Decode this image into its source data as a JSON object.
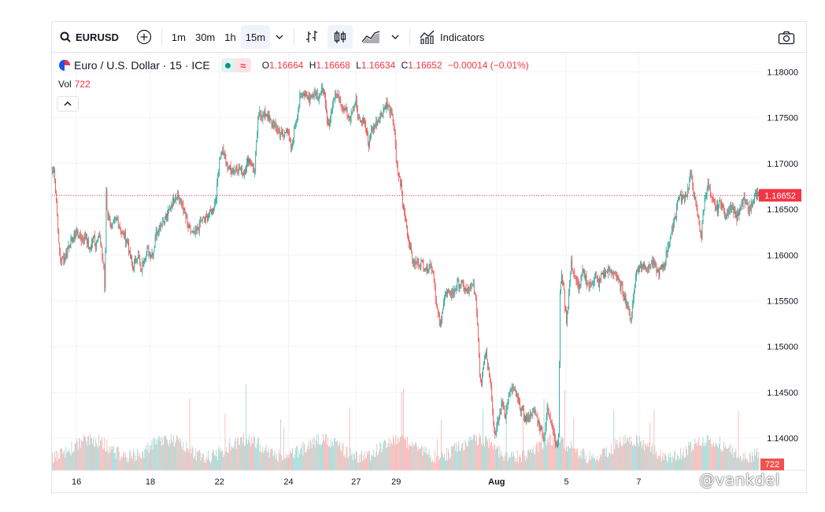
{
  "toolbar": {
    "symbol": "EURUSD",
    "intervals": [
      "1m",
      "30m",
      "1h",
      "15m"
    ],
    "active_interval": "15m",
    "indicators_label": "Indicators"
  },
  "legend": {
    "title": "Euro / U.S. Dollar · 15 · ICE",
    "open_label": "O",
    "open": "1.16664",
    "high_label": "H",
    "high": "1.16668",
    "low_label": "L",
    "low": "1.16634",
    "close_label": "C",
    "close": "1.16652",
    "change": "−0.00014 (−0.01%)",
    "vol_label": "Vol",
    "vol_value": "722"
  },
  "colors": {
    "up": "#26a69a",
    "down": "#ef5350",
    "price_line": "#f23645",
    "grid": "#f0f3fa"
  },
  "watermark": "@vankdel",
  "chart_data": {
    "type": "candlestick",
    "symbol": "EURUSD",
    "interval": "15",
    "last_price": 1.16652,
    "last_volume": 722,
    "ylim": [
      1.1365,
      1.182
    ],
    "y_ticks": [
      "1.18000",
      "1.17500",
      "1.17000",
      "1.16500",
      "1.16000",
      "1.15500",
      "1.15000",
      "1.14500",
      "1.14000"
    ],
    "x_ticks": [
      "16",
      "18",
      "22",
      "24",
      "27",
      "29",
      "Aug",
      "5",
      "7"
    ],
    "price_path": [
      [
        0,
        1.169
      ],
      [
        2,
        1.1692
      ],
      [
        3,
        1.1685
      ],
      [
        4,
        1.167
      ],
      [
        5,
        1.1662
      ],
      [
        8,
        1.161
      ],
      [
        10,
        1.1595
      ],
      [
        16,
        1.1598
      ],
      [
        20,
        1.161
      ],
      [
        26,
        1.1618
      ],
      [
        30,
        1.1625
      ],
      [
        36,
        1.1618
      ],
      [
        42,
        1.162
      ],
      [
        46,
        1.1605
      ],
      [
        50,
        1.1615
      ],
      [
        52,
        1.162
      ],
      [
        54,
        1.161
      ],
      [
        56,
        1.162
      ],
      [
        58,
        1.1625
      ],
      [
        60,
        1.1612
      ],
      [
        62,
        1.16
      ],
      [
        64,
        1.1585
      ],
      [
        65,
        1.1565
      ],
      [
        66,
        1.16
      ],
      [
        67,
        1.167
      ],
      [
        68,
        1.165
      ],
      [
        70,
        1.164
      ],
      [
        74,
        1.163
      ],
      [
        80,
        1.164
      ],
      [
        84,
        1.163
      ],
      [
        86,
        1.1625
      ],
      [
        90,
        1.162
      ],
      [
        94,
        1.1615
      ],
      [
        96,
        1.16
      ],
      [
        98,
        1.1595
      ],
      [
        100,
        1.1585
      ],
      [
        104,
        1.1595
      ],
      [
        106,
        1.16
      ],
      [
        108,
        1.1595
      ],
      [
        110,
        1.158
      ],
      [
        112,
        1.159
      ],
      [
        114,
        1.1598
      ],
      [
        118,
        1.1605
      ],
      [
        122,
        1.16
      ],
      [
        126,
        1.1605
      ],
      [
        128,
        1.162
      ],
      [
        132,
        1.163
      ],
      [
        136,
        1.1635
      ],
      [
        140,
        1.164
      ],
      [
        144,
        1.1645
      ],
      [
        148,
        1.1655
      ],
      [
        152,
        1.1662
      ],
      [
        156,
        1.1668
      ],
      [
        158,
        1.166
      ],
      [
        162,
        1.1655
      ],
      [
        166,
        1.164
      ],
      [
        170,
        1.1628
      ],
      [
        176,
        1.1622
      ],
      [
        182,
        1.163
      ],
      [
        186,
        1.164
      ],
      [
        190,
        1.1638
      ],
      [
        196,
        1.1645
      ],
      [
        200,
        1.165
      ],
      [
        204,
        1.1665
      ],
      [
        208,
        1.1705
      ],
      [
        212,
        1.1715
      ],
      [
        216,
        1.17
      ],
      [
        222,
        1.1692
      ],
      [
        230,
        1.1695
      ],
      [
        238,
        1.169
      ],
      [
        244,
        1.1705
      ],
      [
        248,
        1.17
      ],
      [
        252,
        1.169
      ],
      [
        254,
        1.172
      ],
      [
        256,
        1.1748
      ],
      [
        258,
        1.1758
      ],
      [
        262,
        1.175
      ],
      [
        266,
        1.1755
      ],
      [
        270,
        1.1748
      ],
      [
        276,
        1.174
      ],
      [
        282,
        1.1735
      ],
      [
        288,
        1.173
      ],
      [
        292,
        1.174
      ],
      [
        296,
        1.172
      ],
      [
        298,
        1.1715
      ],
      [
        300,
        1.173
      ],
      [
        304,
        1.175
      ],
      [
        308,
        1.177
      ],
      [
        312,
        1.1778
      ],
      [
        316,
        1.1775
      ],
      [
        320,
        1.177
      ],
      [
        324,
        1.1776
      ],
      [
        328,
        1.178
      ],
      [
        330,
        1.1773
      ],
      [
        334,
        1.1776
      ],
      [
        338,
        1.1782
      ],
      [
        340,
        1.176
      ],
      [
        342,
        1.1745
      ],
      [
        344,
        1.174
      ],
      [
        346,
        1.175
      ],
      [
        350,
        1.177
      ],
      [
        354,
        1.1775
      ],
      [
        358,
        1.177
      ],
      [
        362,
        1.176
      ],
      [
        366,
        1.1758
      ],
      [
        370,
        1.175
      ],
      [
        374,
        1.1762
      ],
      [
        378,
        1.177
      ],
      [
        380,
        1.175
      ],
      [
        384,
        1.1745
      ],
      [
        388,
        1.1748
      ],
      [
        392,
        1.173
      ],
      [
        394,
        1.1718
      ],
      [
        396,
        1.1735
      ],
      [
        400,
        1.174
      ],
      [
        404,
        1.1745
      ],
      [
        408,
        1.1752
      ],
      [
        412,
        1.176
      ],
      [
        416,
        1.1765
      ],
      [
        420,
        1.1758
      ],
      [
        424,
        1.1748
      ],
      [
        426,
        1.1735
      ],
      [
        428,
        1.17
      ],
      [
        430,
        1.169
      ],
      [
        434,
        1.1675
      ],
      [
        436,
        1.1655
      ],
      [
        440,
        1.164
      ],
      [
        442,
        1.1625
      ],
      [
        446,
        1.1605
      ],
      [
        450,
        1.159
      ],
      [
        456,
        1.1593
      ],
      [
        462,
        1.159
      ],
      [
        466,
        1.1585
      ],
      [
        470,
        1.159
      ],
      [
        474,
        1.1582
      ],
      [
        476,
        1.1565
      ],
      [
        478,
        1.1545
      ],
      [
        480,
        1.1535
      ],
      [
        482,
        1.1525
      ],
      [
        484,
        1.1525
      ],
      [
        486,
        1.1545
      ],
      [
        488,
        1.1555
      ],
      [
        492,
        1.1558
      ],
      [
        496,
        1.1558
      ],
      [
        500,
        1.156
      ],
      [
        504,
        1.1568
      ],
      [
        508,
        1.157
      ],
      [
        512,
        1.1565
      ],
      [
        516,
        1.156
      ],
      [
        520,
        1.1562
      ],
      [
        524,
        1.1568
      ],
      [
        526,
        1.1555
      ],
      [
        528,
        1.154
      ],
      [
        530,
        1.151
      ],
      [
        532,
        1.147
      ],
      [
        534,
        1.146
      ],
      [
        536,
        1.148
      ],
      [
        538,
        1.149
      ],
      [
        540,
        1.1495
      ],
      [
        542,
        1.148
      ],
      [
        546,
        1.146
      ],
      [
        548,
        1.143
      ],
      [
        550,
        1.141
      ],
      [
        552,
        1.1405
      ],
      [
        554,
        1.1415
      ],
      [
        558,
        1.143
      ],
      [
        560,
        1.144
      ],
      [
        564,
        1.1425
      ],
      [
        568,
        1.1445
      ],
      [
        572,
        1.1455
      ],
      [
        576,
        1.145
      ],
      [
        580,
        1.144
      ],
      [
        584,
        1.143
      ],
      [
        588,
        1.1422
      ],
      [
        592,
        1.142
      ],
      [
        596,
        1.1428
      ],
      [
        600,
        1.143
      ],
      [
        604,
        1.142
      ],
      [
        608,
        1.141
      ],
      [
        612,
        1.14
      ],
      [
        616,
        1.143
      ],
      [
        620,
        1.142
      ],
      [
        624,
        1.141
      ],
      [
        626,
        1.1395
      ],
      [
        628,
        1.1395
      ],
      [
        630,
        1.14
      ],
      [
        632,
        1.156
      ],
      [
        634,
        1.1575
      ],
      [
        636,
        1.157
      ],
      [
        638,
        1.1545
      ],
      [
        640,
        1.153
      ],
      [
        642,
        1.1545
      ],
      [
        644,
        1.157
      ],
      [
        646,
        1.159
      ],
      [
        648,
        1.1585
      ],
      [
        652,
        1.157
      ],
      [
        656,
        1.1565
      ],
      [
        660,
        1.158
      ],
      [
        664,
        1.1575
      ],
      [
        668,
        1.1565
      ],
      [
        672,
        1.1572
      ],
      [
        676,
        1.1575
      ],
      [
        680,
        1.1568
      ],
      [
        684,
        1.158
      ],
      [
        688,
        1.1578
      ],
      [
        692,
        1.1585
      ],
      [
        696,
        1.158
      ],
      [
        700,
        1.1583
      ],
      [
        704,
        1.157
      ],
      [
        708,
        1.1565
      ],
      [
        712,
        1.1555
      ],
      [
        716,
        1.1545
      ],
      [
        718,
        1.1535
      ],
      [
        720,
        1.153
      ],
      [
        722,
        1.1545
      ],
      [
        724,
        1.156
      ],
      [
        726,
        1.158
      ],
      [
        730,
        1.1585
      ],
      [
        734,
        1.159
      ],
      [
        738,
        1.1588
      ],
      [
        742,
        1.1585
      ],
      [
        746,
        1.1592
      ],
      [
        750,
        1.1588
      ],
      [
        754,
        1.158
      ],
      [
        758,
        1.1585
      ],
      [
        762,
        1.159
      ],
      [
        764,
        1.16
      ],
      [
        766,
        1.161
      ],
      [
        770,
        1.162
      ],
      [
        774,
        1.164
      ],
      [
        776,
        1.1645
      ],
      [
        778,
        1.1658
      ],
      [
        780,
        1.1665
      ],
      [
        784,
        1.166
      ],
      [
        786,
        1.1662
      ],
      [
        790,
        1.1668
      ],
      [
        792,
        1.1675
      ],
      [
        794,
        1.169
      ],
      [
        796,
        1.1682
      ],
      [
        798,
        1.167
      ],
      [
        800,
        1.166
      ],
      [
        802,
        1.1648
      ],
      [
        804,
        1.164
      ],
      [
        806,
        1.1628
      ],
      [
        808,
        1.162
      ],
      [
        810,
        1.1645
      ],
      [
        812,
        1.166
      ],
      [
        814,
        1.167
      ],
      [
        816,
        1.1676
      ],
      [
        818,
        1.167
      ],
      [
        820,
        1.166
      ],
      [
        824,
        1.1655
      ],
      [
        828,
        1.165
      ],
      [
        832,
        1.166
      ],
      [
        836,
        1.1648
      ],
      [
        838,
        1.164
      ],
      [
        840,
        1.1645
      ],
      [
        844,
        1.1655
      ],
      [
        848,
        1.165
      ],
      [
        852,
        1.164
      ],
      [
        856,
        1.1648
      ],
      [
        860,
        1.166
      ],
      [
        864,
        1.1655
      ],
      [
        868,
        1.165
      ],
      [
        872,
        1.166
      ],
      [
        876,
        1.1666
      ],
      [
        879,
        1.16652
      ]
    ]
  }
}
